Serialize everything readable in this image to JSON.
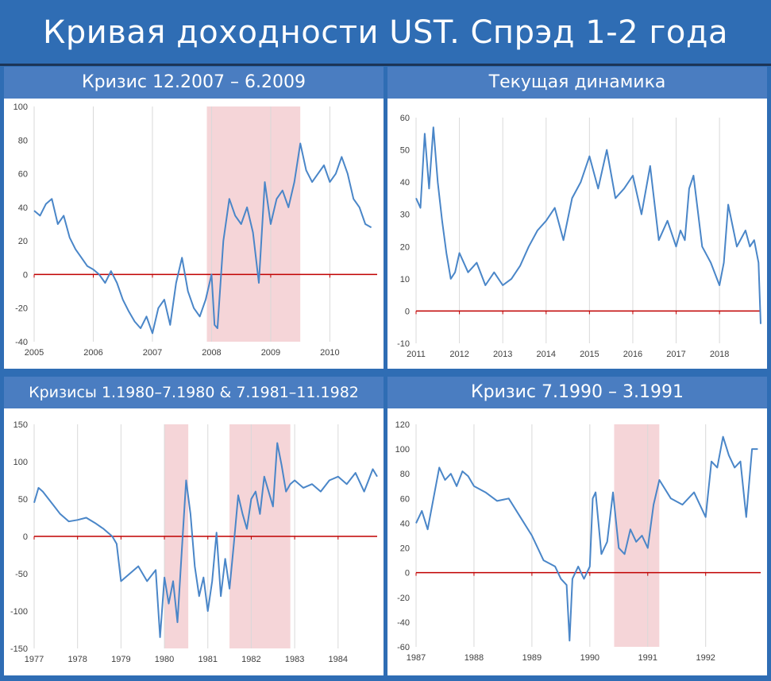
{
  "title": "Кривая доходности UST. Спрэд 1-2 года",
  "colors": {
    "line": "#4a86c8",
    "zero_line": "#c00000",
    "crisis_band": "#f5d5d8",
    "grid": "#d9d9d9"
  },
  "chart_data": [
    {
      "type": "line",
      "title": "Кризис 12.2007 – 6.2009",
      "xlabel": "",
      "ylabel": "",
      "xlim": [
        2005.0,
        2010.8
      ],
      "ylim": [
        -40,
        100
      ],
      "yticks": [
        -40,
        -20,
        0,
        20,
        40,
        60,
        80,
        100
      ],
      "xticks": [
        2005,
        2006,
        2007,
        2008,
        2009,
        2010
      ],
      "grid": true,
      "crisis_bands": [
        [
          2007.92,
          2009.5
        ]
      ],
      "series": [
        {
          "x": [
            2005.0,
            2005.1,
            2005.2,
            2005.3,
            2005.4,
            2005.5,
            2005.6,
            2005.7,
            2005.8,
            2005.9,
            2006.0,
            2006.1,
            2006.2,
            2006.3,
            2006.4,
            2006.5,
            2006.6,
            2006.7,
            2006.8,
            2006.9,
            2007.0,
            2007.1,
            2007.2,
            2007.3,
            2007.4,
            2007.5,
            2007.6,
            2007.7,
            2007.8,
            2007.9,
            2008.0,
            2008.05,
            2008.1,
            2008.2,
            2008.3,
            2008.4,
            2008.5,
            2008.6,
            2008.7,
            2008.8,
            2008.9,
            2009.0,
            2009.1,
            2009.2,
            2009.3,
            2009.4,
            2009.5,
            2009.6,
            2009.7,
            2009.8,
            2009.9,
            2010.0,
            2010.1,
            2010.2,
            2010.3,
            2010.4,
            2010.5,
            2010.6,
            2010.7
          ],
          "y": [
            38,
            35,
            42,
            45,
            30,
            35,
            22,
            15,
            10,
            5,
            3,
            0,
            -5,
            2,
            -5,
            -15,
            -22,
            -28,
            -32,
            -25,
            -35,
            -20,
            -15,
            -30,
            -5,
            10,
            -10,
            -20,
            -25,
            -15,
            0,
            -30,
            -32,
            20,
            45,
            35,
            30,
            40,
            25,
            -5,
            55,
            30,
            45,
            50,
            40,
            55,
            78,
            62,
            55,
            60,
            65,
            55,
            60,
            70,
            60,
            45,
            40,
            30,
            28
          ]
        }
      ]
    },
    {
      "type": "line",
      "title": "Текущая динамика",
      "xlabel": "",
      "ylabel": "",
      "xlim": [
        2011.0,
        2018.95
      ],
      "ylim": [
        -10,
        60
      ],
      "yticks": [
        -10,
        0,
        10,
        20,
        30,
        40,
        50,
        60
      ],
      "xticks": [
        2011,
        2012,
        2013,
        2014,
        2015,
        2016,
        2017,
        2018
      ],
      "grid": true,
      "crisis_bands": [],
      "series": [
        {
          "x": [
            2011.0,
            2011.1,
            2011.2,
            2011.3,
            2011.4,
            2011.5,
            2011.6,
            2011.7,
            2011.8,
            2011.9,
            2012.0,
            2012.2,
            2012.4,
            2012.6,
            2012.8,
            2013.0,
            2013.2,
            2013.4,
            2013.6,
            2013.8,
            2014.0,
            2014.2,
            2014.4,
            2014.6,
            2014.8,
            2015.0,
            2015.2,
            2015.4,
            2015.6,
            2015.8,
            2016.0,
            2016.2,
            2016.4,
            2016.6,
            2016.8,
            2017.0,
            2017.1,
            2017.2,
            2017.3,
            2017.4,
            2017.6,
            2017.8,
            2018.0,
            2018.1,
            2018.2,
            2018.4,
            2018.6,
            2018.7,
            2018.8,
            2018.9,
            2018.95
          ],
          "y": [
            35,
            32,
            55,
            38,
            57,
            40,
            28,
            18,
            10,
            12,
            18,
            12,
            15,
            8,
            12,
            8,
            10,
            14,
            20,
            25,
            28,
            32,
            22,
            35,
            40,
            48,
            38,
            50,
            35,
            38,
            42,
            30,
            45,
            22,
            28,
            20,
            25,
            22,
            38,
            42,
            20,
            15,
            8,
            15,
            33,
            20,
            25,
            20,
            22,
            15,
            -4
          ]
        }
      ]
    },
    {
      "type": "line",
      "title": "Кризисы 1.1980–7.1980 & 7.1981–11.1982",
      "xlabel": "",
      "ylabel": "",
      "xlim": [
        1977.0,
        1984.9
      ],
      "ylim": [
        -150,
        150
      ],
      "yticks": [
        -150,
        -100,
        -50,
        0,
        50,
        100,
        150
      ],
      "xticks": [
        1977,
        1978,
        1979,
        1980,
        1981,
        1982,
        1983,
        1984
      ],
      "grid": true,
      "crisis_bands": [
        [
          1980.0,
          1980.55
        ],
        [
          1981.5,
          1982.9
        ]
      ],
      "series": [
        {
          "x": [
            1977.0,
            1977.1,
            1977.2,
            1977.4,
            1977.6,
            1977.8,
            1978.0,
            1978.2,
            1978.4,
            1978.6,
            1978.8,
            1978.9,
            1979.0,
            1979.2,
            1979.4,
            1979.6,
            1979.8,
            1979.9,
            1980.0,
            1980.1,
            1980.2,
            1980.3,
            1980.4,
            1980.5,
            1980.6,
            1980.7,
            1980.8,
            1980.9,
            1981.0,
            1981.1,
            1981.2,
            1981.3,
            1981.4,
            1981.5,
            1981.6,
            1981.7,
            1981.8,
            1981.9,
            1982.0,
            1982.1,
            1982.2,
            1982.3,
            1982.5,
            1982.6,
            1982.7,
            1982.8,
            1982.9,
            1983.0,
            1983.2,
            1983.4,
            1983.6,
            1983.8,
            1984.0,
            1984.2,
            1984.4,
            1984.6,
            1984.7,
            1984.8,
            1984.9
          ],
          "y": [
            45,
            65,
            60,
            45,
            30,
            20,
            22,
            25,
            18,
            10,
            0,
            -10,
            -60,
            -50,
            -40,
            -60,
            -45,
            -135,
            -55,
            -90,
            -60,
            -115,
            -20,
            75,
            30,
            -40,
            -80,
            -55,
            -100,
            -60,
            5,
            -80,
            -30,
            -70,
            -10,
            55,
            30,
            10,
            50,
            60,
            30,
            80,
            40,
            125,
            95,
            60,
            70,
            75,
            65,
            70,
            60,
            75,
            80,
            70,
            85,
            60,
            75,
            90,
            80
          ]
        }
      ]
    },
    {
      "type": "line",
      "title": "Кризис 7.1990 – 3.1991",
      "xlabel": "",
      "ylabel": "",
      "xlim": [
        1987.0,
        1992.95
      ],
      "ylim": [
        -60,
        120
      ],
      "yticks": [
        -60,
        -40,
        -20,
        0,
        20,
        40,
        60,
        80,
        100,
        120
      ],
      "xticks": [
        1987,
        1988,
        1989,
        1990,
        1991,
        1992
      ],
      "grid": true,
      "crisis_bands": [
        [
          1990.42,
          1991.2
        ]
      ],
      "series": [
        {
          "x": [
            1987.0,
            1987.1,
            1987.2,
            1987.3,
            1987.4,
            1987.5,
            1987.6,
            1987.7,
            1987.8,
            1987.9,
            1988.0,
            1988.2,
            1988.4,
            1988.6,
            1988.8,
            1989.0,
            1989.2,
            1989.4,
            1989.5,
            1989.6,
            1989.65,
            1989.7,
            1989.8,
            1989.9,
            1990.0,
            1990.05,
            1990.1,
            1990.2,
            1990.3,
            1990.4,
            1990.5,
            1990.6,
            1990.7,
            1990.8,
            1990.9,
            1991.0,
            1991.1,
            1991.2,
            1991.4,
            1991.6,
            1991.8,
            1992.0,
            1992.1,
            1992.2,
            1992.3,
            1992.4,
            1992.5,
            1992.6,
            1992.7,
            1992.8,
            1992.9
          ],
          "y": [
            40,
            50,
            35,
            60,
            85,
            75,
            80,
            70,
            82,
            78,
            70,
            65,
            58,
            60,
            45,
            30,
            10,
            5,
            -5,
            -10,
            -55,
            -5,
            5,
            -5,
            5,
            60,
            65,
            15,
            25,
            65,
            20,
            15,
            35,
            25,
            30,
            20,
            55,
            75,
            60,
            55,
            65,
            45,
            90,
            85,
            110,
            95,
            85,
            90,
            45,
            100,
            100
          ]
        }
      ]
    }
  ]
}
